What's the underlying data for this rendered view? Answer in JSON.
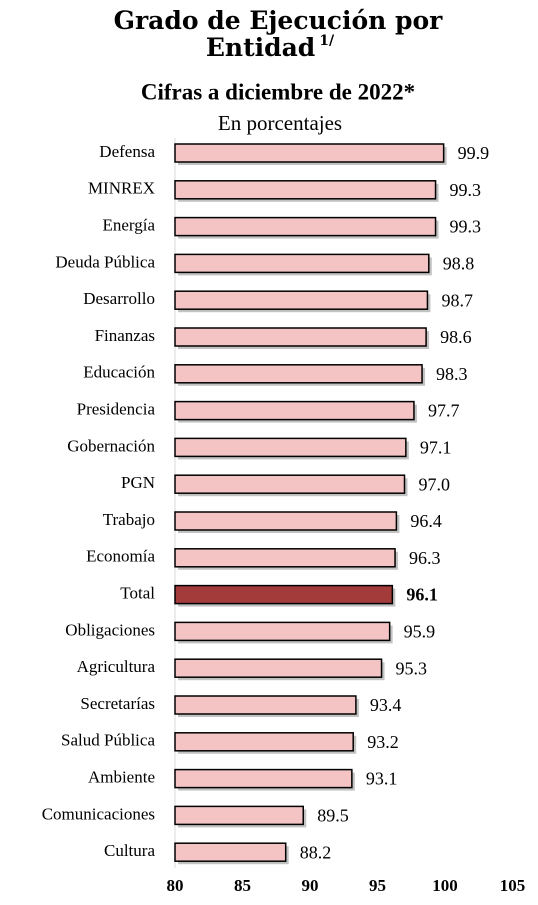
{
  "chart_data": {
    "type": "barh",
    "title": "Grado de Ejecución por Entidad",
    "title_note": "1/",
    "subtitle": "Cifras a diciembre de 2022*",
    "unit_label": "En porcentajes",
    "categories": [
      "Defensa",
      "MINREX",
      "Energía",
      "Deuda Pública",
      "Desarrollo",
      "Finanzas",
      "Educación",
      "Presidencia",
      "Gobernación",
      "PGN",
      "Trabajo",
      "Economía",
      "Total",
      "Obligaciones",
      "Agricultura",
      "Secretarías",
      "Salud Pública",
      "Ambiente",
      "Comunicaciones",
      "Cultura"
    ],
    "values": [
      99.9,
      99.3,
      99.3,
      98.8,
      98.7,
      98.6,
      98.3,
      97.7,
      97.1,
      97.0,
      96.4,
      96.3,
      96.1,
      95.9,
      95.3,
      93.4,
      93.2,
      93.1,
      89.5,
      88.2
    ],
    "value_labels": [
      "99.9",
      "99.3",
      "99.3",
      "98.8",
      "98.7",
      "98.6",
      "98.3",
      "97.7",
      "97.1",
      "97.0",
      "96.4",
      "96.3",
      "96.1",
      "95.9",
      "95.3",
      "93.4",
      "93.2",
      "93.1",
      "89.5",
      "88.2"
    ],
    "colors": [
      "#f4c4c4",
      "#f4c4c4",
      "#f4c4c4",
      "#f4c4c4",
      "#f4c4c4",
      "#f4c4c4",
      "#f4c4c4",
      "#f4c4c4",
      "#f4c4c4",
      "#f4c4c4",
      "#f4c4c4",
      "#f4c4c4",
      "#a33b3b",
      "#f4c4c4",
      "#f4c4c4",
      "#f4c4c4",
      "#f4c4c4",
      "#f4c4c4",
      "#f4c4c4",
      "#f4c4c4"
    ],
    "xlim": [
      80,
      105
    ],
    "xticks": [
      80,
      85,
      90,
      95,
      100,
      105
    ]
  }
}
